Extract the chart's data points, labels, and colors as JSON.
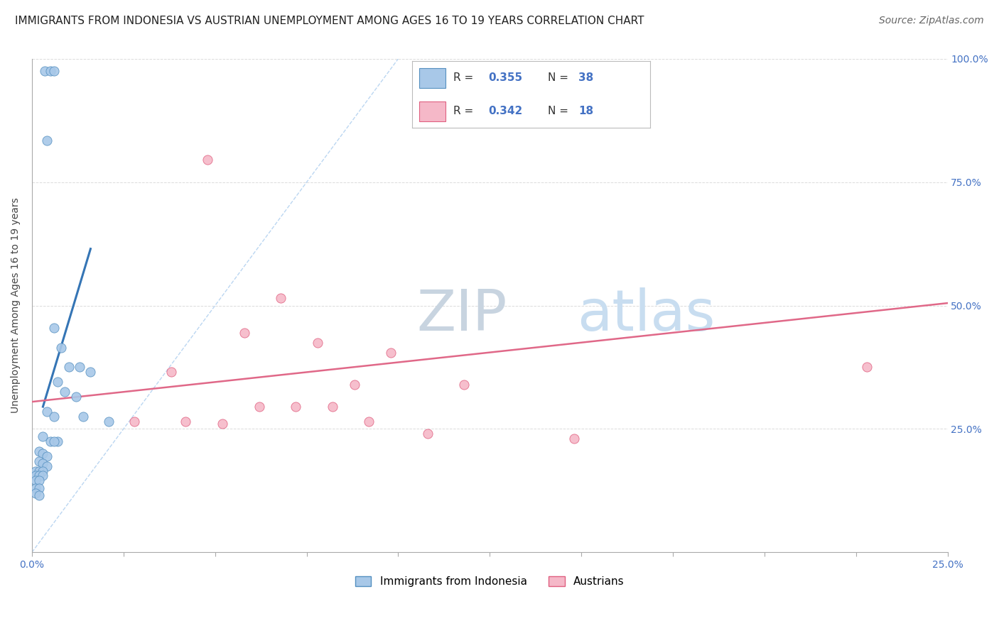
{
  "title": "IMMIGRANTS FROM INDONESIA VS AUSTRIAN UNEMPLOYMENT AMONG AGES 16 TO 19 YEARS CORRELATION CHART",
  "source": "Source: ZipAtlas.com",
  "ylabel": "Unemployment Among Ages 16 to 19 years",
  "legend_label1": "Immigrants from Indonesia",
  "legend_label2": "Austrians",
  "R1": "0.355",
  "N1": "38",
  "R2": "0.342",
  "N2": "18",
  "color1": "#a8c8e8",
  "color2": "#f5b8c8",
  "edge_color1": "#5590c0",
  "edge_color2": "#e06080",
  "trend_color1": "#3575b5",
  "trend_color2": "#e06888",
  "xmin": 0.0,
  "xmax": 0.25,
  "ymin": 0.0,
  "ymax": 1.0,
  "yticks": [
    0.0,
    0.25,
    0.5,
    0.75,
    1.0
  ],
  "ytick_labels_right": [
    "",
    "25.0%",
    "50.0%",
    "75.0%",
    "100.0%"
  ],
  "xticks": [
    0.0,
    0.025,
    0.05,
    0.075,
    0.1,
    0.125,
    0.15,
    0.175,
    0.2,
    0.225,
    0.25
  ],
  "xtick_labels": [
    "0.0%",
    "",
    "",
    "",
    "",
    "",
    "",
    "",
    "",
    "",
    "25.0%"
  ],
  "blue_dots": [
    [
      0.0035,
      0.975
    ],
    [
      0.005,
      0.975
    ],
    [
      0.006,
      0.975
    ],
    [
      0.004,
      0.835
    ],
    [
      0.006,
      0.455
    ],
    [
      0.008,
      0.415
    ],
    [
      0.01,
      0.375
    ],
    [
      0.013,
      0.375
    ],
    [
      0.016,
      0.365
    ],
    [
      0.007,
      0.345
    ],
    [
      0.009,
      0.325
    ],
    [
      0.012,
      0.315
    ],
    [
      0.004,
      0.285
    ],
    [
      0.006,
      0.275
    ],
    [
      0.003,
      0.235
    ],
    [
      0.005,
      0.225
    ],
    [
      0.007,
      0.225
    ],
    [
      0.002,
      0.205
    ],
    [
      0.003,
      0.2
    ],
    [
      0.004,
      0.195
    ],
    [
      0.002,
      0.185
    ],
    [
      0.003,
      0.18
    ],
    [
      0.004,
      0.175
    ],
    [
      0.001,
      0.165
    ],
    [
      0.002,
      0.165
    ],
    [
      0.003,
      0.165
    ],
    [
      0.001,
      0.155
    ],
    [
      0.002,
      0.155
    ],
    [
      0.003,
      0.155
    ],
    [
      0.001,
      0.145
    ],
    [
      0.002,
      0.145
    ],
    [
      0.001,
      0.13
    ],
    [
      0.002,
      0.13
    ],
    [
      0.006,
      0.225
    ],
    [
      0.014,
      0.275
    ],
    [
      0.021,
      0.265
    ],
    [
      0.001,
      0.12
    ],
    [
      0.002,
      0.115
    ]
  ],
  "pink_dots": [
    [
      0.048,
      0.795
    ],
    [
      0.068,
      0.515
    ],
    [
      0.058,
      0.445
    ],
    [
      0.078,
      0.425
    ],
    [
      0.098,
      0.405
    ],
    [
      0.038,
      0.365
    ],
    [
      0.088,
      0.34
    ],
    [
      0.118,
      0.34
    ],
    [
      0.062,
      0.295
    ],
    [
      0.072,
      0.295
    ],
    [
      0.082,
      0.295
    ],
    [
      0.028,
      0.265
    ],
    [
      0.042,
      0.265
    ],
    [
      0.052,
      0.26
    ],
    [
      0.092,
      0.265
    ],
    [
      0.148,
      0.23
    ],
    [
      0.108,
      0.24
    ],
    [
      0.228,
      0.375
    ]
  ],
  "blue_trend_x": [
    0.003,
    0.016
  ],
  "blue_trend_y": [
    0.295,
    0.615
  ],
  "pink_trend_x": [
    0.0,
    0.25
  ],
  "pink_trend_y": [
    0.305,
    0.505
  ],
  "ref_line_x": [
    0.0,
    0.1
  ],
  "ref_line_y": [
    0.0,
    1.0
  ],
  "axis_color": "#4472c4",
  "background_color": "#ffffff",
  "grid_color": "#cccccc",
  "title_fontsize": 11,
  "label_fontsize": 10,
  "tick_fontsize": 10,
  "source_fontsize": 10
}
